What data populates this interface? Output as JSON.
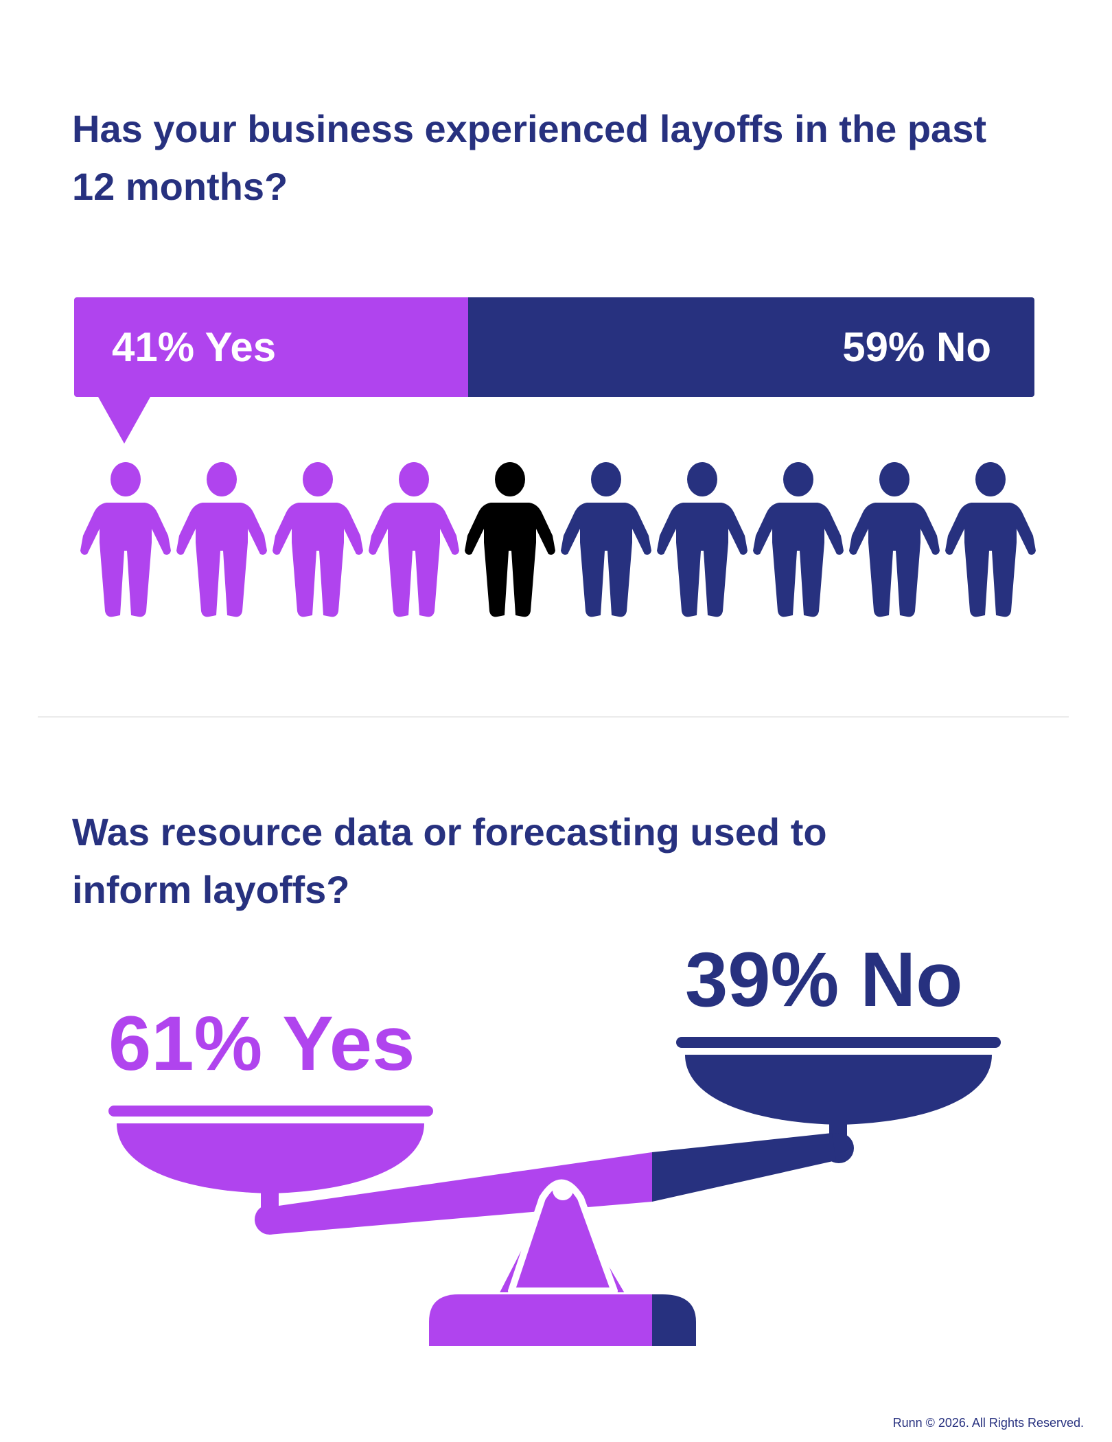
{
  "colors": {
    "yes": "#b044ee",
    "no": "#27317f",
    "title": "#27317f",
    "divider": "#ebebeb"
  },
  "q1": {
    "title": "Has your business experienced layoffs in the past 12 months?",
    "yes_label": "41% Yes",
    "no_label": "59% No"
  },
  "q2": {
    "title": "Was resource data or forecasting used to inform layoffs?",
    "yes_label": "61% Yes",
    "no_label": "39% No"
  },
  "footer": "Runn © 2026. All Rights Reserved.",
  "chart_data": [
    {
      "type": "bar",
      "title": "Has your business experienced layoffs in the past 12 months?",
      "stacked": true,
      "orientation": "horizontal",
      "categories": [
        "Yes",
        "No"
      ],
      "values": [
        41,
        59
      ],
      "unit": "%",
      "pictogram": {
        "icon": "person-icon",
        "total": 10,
        "yes_fraction": 0.41
      }
    },
    {
      "type": "bar",
      "title": "Was resource data or forecasting used to inform layoffs?",
      "style": "balance-scale",
      "categories": [
        "Yes",
        "No"
      ],
      "values": [
        61,
        39
      ],
      "unit": "%"
    }
  ]
}
